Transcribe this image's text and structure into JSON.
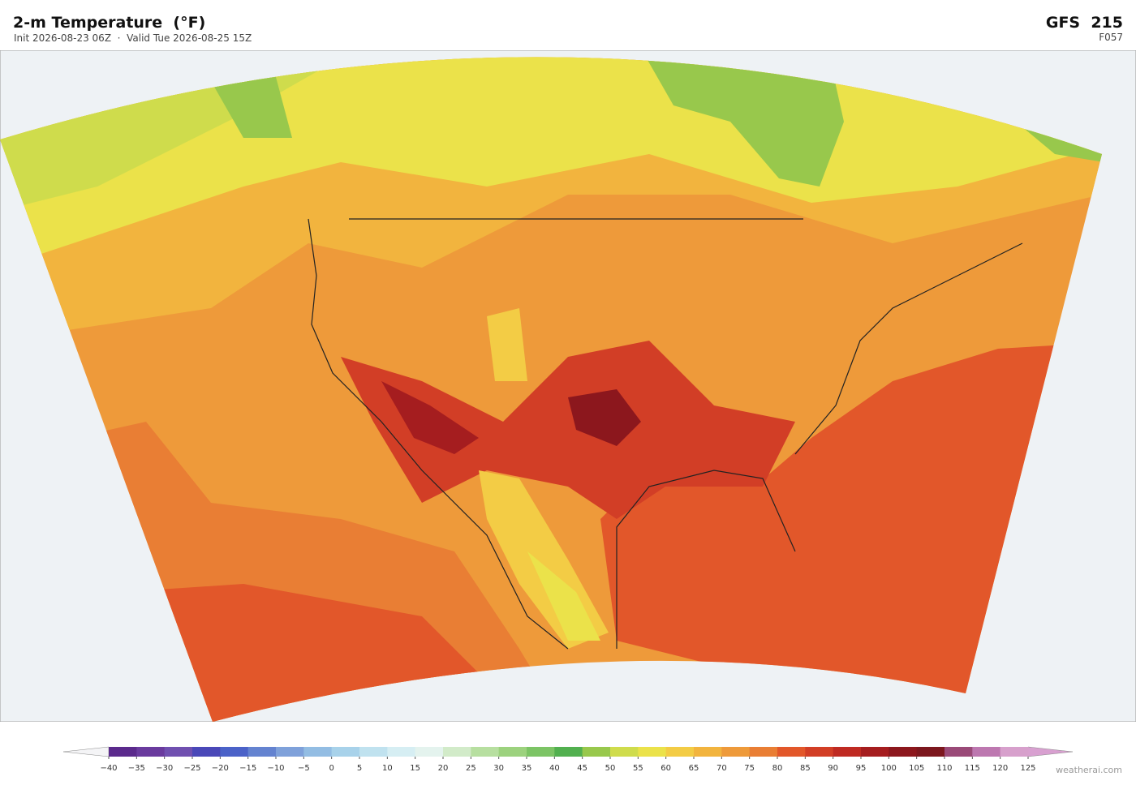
{
  "header": {
    "title": "2-m Temperature  (°F)",
    "subtitle": "Init 2026-08-23 06Z  ·  Valid Tue 2026-08-25 15Z",
    "model": "GFS  215",
    "forecast_hour": "F057"
  },
  "colorbar": {
    "ticks": [
      {
        "value": -40,
        "label": "−40"
      },
      {
        "value": -35,
        "label": "−35"
      },
      {
        "value": -30,
        "label": "−30"
      },
      {
        "value": -25,
        "label": "−25"
      },
      {
        "value": -20,
        "label": "−20"
      },
      {
        "value": -15,
        "label": "−15"
      },
      {
        "value": -10,
        "label": "−10"
      },
      {
        "value": -5,
        "label": "−5"
      },
      0,
      5,
      10,
      15,
      20,
      25,
      30,
      35,
      40,
      45,
      50,
      55,
      60,
      65,
      70,
      75,
      80,
      85,
      90,
      95,
      100,
      105,
      110,
      115,
      120,
      125
    ],
    "colors": [
      "#5b2a8c",
      "#6a3b9e",
      "#7050b0",
      "#4a48b8",
      "#4b62c8",
      "#6483d0",
      "#7fa1da",
      "#93bde3",
      "#a8d2ea",
      "#c0e2ef",
      "#d6eef3",
      "#e4f3ee",
      "#d2ebc9",
      "#b7dfa0",
      "#9cd27e",
      "#7cc465",
      "#52b04f",
      "#98c84c",
      "#cfdc4c",
      "#ebe24a",
      "#f3cc45",
      "#f2b43e",
      "#ee9a3a",
      "#e97e34",
      "#e2572a",
      "#d23e26",
      "#bf2a22",
      "#a51d1f",
      "#8c171d",
      "#7c171e",
      "#9a4a78",
      "#bd78b0",
      "#d7a0cc"
    ],
    "min_extend_color": "#f4f4f6",
    "max_extend_color": "#d8a0d0"
  },
  "credit": "weatherai.com"
}
